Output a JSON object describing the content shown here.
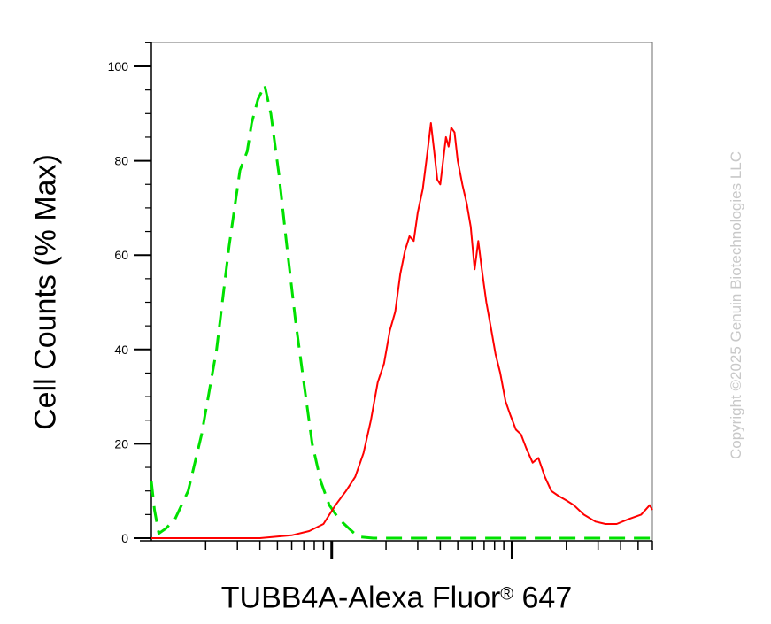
{
  "chart_data": {
    "type": "line",
    "xlabel": "TUBB4A-Alexa Fluor",
    "xlabel_superscript": "®",
    "xlabel_suffix": " 647",
    "ylabel": "Cell Counts (% Max)",
    "x_scale": "log",
    "xlim": [
      1,
      600
    ],
    "ylim": [
      -1,
      105
    ],
    "yticks": [
      0,
      20,
      40,
      60,
      80,
      100
    ],
    "ytick_labels": [
      "0",
      "20",
      "40",
      "60",
      "80",
      "100"
    ],
    "grid": false,
    "series": [
      {
        "style": "dashed",
        "color": "#00e000",
        "points": [
          [
            1.0,
            12
          ],
          [
            1.04,
            6
          ],
          [
            1.1,
            1
          ],
          [
            1.2,
            2
          ],
          [
            1.35,
            4
          ],
          [
            1.6,
            10
          ],
          [
            1.9,
            22
          ],
          [
            2.3,
            40
          ],
          [
            2.7,
            62
          ],
          [
            3.1,
            78
          ],
          [
            3.4,
            82
          ],
          [
            3.6,
            88
          ],
          [
            3.9,
            93
          ],
          [
            4.25,
            96
          ],
          [
            4.6,
            90
          ],
          [
            5.1,
            77
          ],
          [
            5.6,
            63
          ],
          [
            6.3,
            46
          ],
          [
            7.0,
            33
          ],
          [
            7.8,
            20
          ],
          [
            8.7,
            12
          ],
          [
            9.7,
            7
          ],
          [
            11,
            4
          ],
          [
            12.5,
            2
          ],
          [
            14,
            0.3
          ],
          [
            17,
            0
          ],
          [
            600,
            0
          ]
        ]
      },
      {
        "style": "solid",
        "color": "#ff0000",
        "points": [
          [
            1.0,
            0
          ],
          [
            4.0,
            0
          ],
          [
            6.0,
            0.6
          ],
          [
            7.5,
            1.5
          ],
          [
            9.0,
            3
          ],
          [
            10.5,
            7
          ],
          [
            12.0,
            10
          ],
          [
            13.5,
            13
          ],
          [
            15.0,
            18
          ],
          [
            16.5,
            25
          ],
          [
            18.0,
            33
          ],
          [
            19.5,
            37
          ],
          [
            21.0,
            44
          ],
          [
            22.5,
            48
          ],
          [
            24.0,
            56
          ],
          [
            25.5,
            61
          ],
          [
            27.0,
            64
          ],
          [
            28.5,
            63
          ],
          [
            30.0,
            69
          ],
          [
            32.0,
            74
          ],
          [
            34.0,
            82
          ],
          [
            35.5,
            88
          ],
          [
            37.0,
            82
          ],
          [
            38.5,
            76
          ],
          [
            40.0,
            75
          ],
          [
            41.5,
            80
          ],
          [
            43.0,
            85
          ],
          [
            44.5,
            83
          ],
          [
            46.0,
            87
          ],
          [
            48.0,
            86
          ],
          [
            50.0,
            80
          ],
          [
            53.0,
            75
          ],
          [
            56.0,
            71
          ],
          [
            59.0,
            66
          ],
          [
            62.0,
            57
          ],
          [
            65.0,
            63
          ],
          [
            68.0,
            57
          ],
          [
            72.0,
            50
          ],
          [
            76.0,
            45
          ],
          [
            81.0,
            39
          ],
          [
            86.0,
            35
          ],
          [
            92.0,
            29
          ],
          [
            98.0,
            26
          ],
          [
            105.0,
            23
          ],
          [
            112.0,
            22
          ],
          [
            120.0,
            19
          ],
          [
            130.0,
            16
          ],
          [
            140.0,
            17
          ],
          [
            152.0,
            13
          ],
          [
            165.0,
            10
          ],
          [
            180.0,
            9
          ],
          [
            200.0,
            8
          ],
          [
            220.0,
            7
          ],
          [
            250.0,
            5
          ],
          [
            290.0,
            3.5
          ],
          [
            330.0,
            3
          ],
          [
            380.0,
            3
          ],
          [
            440.0,
            4
          ],
          [
            520.0,
            5
          ],
          [
            580.0,
            7
          ],
          [
            600.0,
            6
          ]
        ]
      }
    ]
  },
  "watermark": "Copyright ©2025 Genuin Biotechnologies LLC"
}
